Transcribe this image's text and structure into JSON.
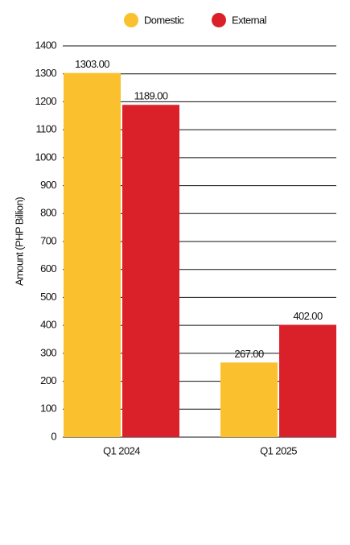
{
  "chart_data": {
    "type": "bar",
    "categories": [
      "Q1 2024",
      "Q1 2025"
    ],
    "series": [
      {
        "name": "Domestic",
        "color": "#fbc02d",
        "values": [
          1303,
          267
        ],
        "value_labels": [
          "1303.00",
          "267.00"
        ]
      },
      {
        "name": "External",
        "color": "#da2129",
        "values": [
          1189,
          402
        ],
        "value_labels": [
          "1189.00",
          "402.00"
        ]
      }
    ],
    "y_label": "Amount (PHP Billion)",
    "ylim": [
      0,
      1400
    ],
    "yticks": [
      0,
      100,
      200,
      300,
      400,
      500,
      600,
      700,
      800,
      900,
      1000,
      1100,
      1200,
      1300,
      1400
    ],
    "grid": true,
    "legend": "top"
  }
}
